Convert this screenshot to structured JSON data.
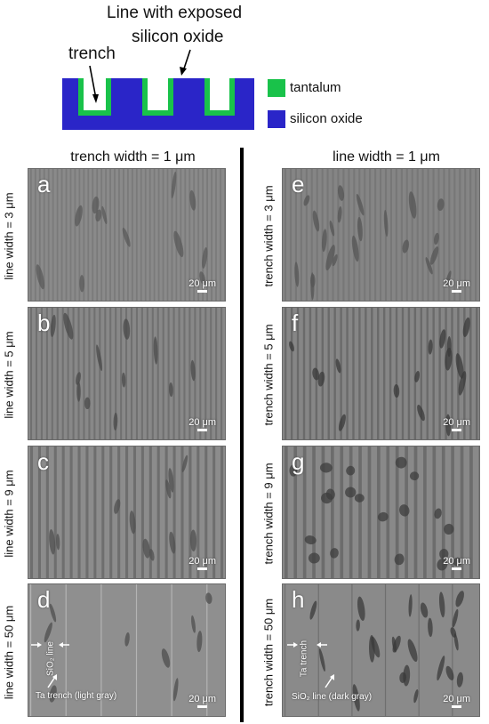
{
  "schematic": {
    "title_line1": "Line with exposed",
    "title_line2": "silicon oxide",
    "trench_label": "trench",
    "legend": [
      {
        "label": "tantalum",
        "color": "#19c24a"
      },
      {
        "label": "silicon oxide",
        "color": "#2a25c8"
      }
    ]
  },
  "columns": {
    "left_header": "trench width = 1 μm",
    "right_header": "line width = 1 μm"
  },
  "rows": {
    "left": [
      "line width = 3 μm",
      "line width = 5 μm",
      "line width = 9 μm",
      "line width = 50 μm"
    ],
    "right": [
      "trench width = 3 μm",
      "trench width = 5 μm",
      "trench width = 9 μm",
      "trench width = 50 μm"
    ]
  },
  "panels": [
    {
      "letter": "a",
      "scale": "20 μm"
    },
    {
      "letter": "b",
      "scale": "20 μm"
    },
    {
      "letter": "c",
      "scale": "20 μm"
    },
    {
      "letter": "d",
      "scale": "20 μm"
    },
    {
      "letter": "e",
      "scale": "20 μm"
    },
    {
      "letter": "f",
      "scale": "20 μm"
    },
    {
      "letter": "g",
      "scale": "20 μm"
    },
    {
      "letter": "h",
      "scale": "20 μm"
    }
  ],
  "annotations": {
    "d_line": "SiO₂ line",
    "d_trench": "Ta trench (light gray)",
    "h_trench": "Ta trench",
    "h_line": "SiO₂ line (dark gray)"
  }
}
